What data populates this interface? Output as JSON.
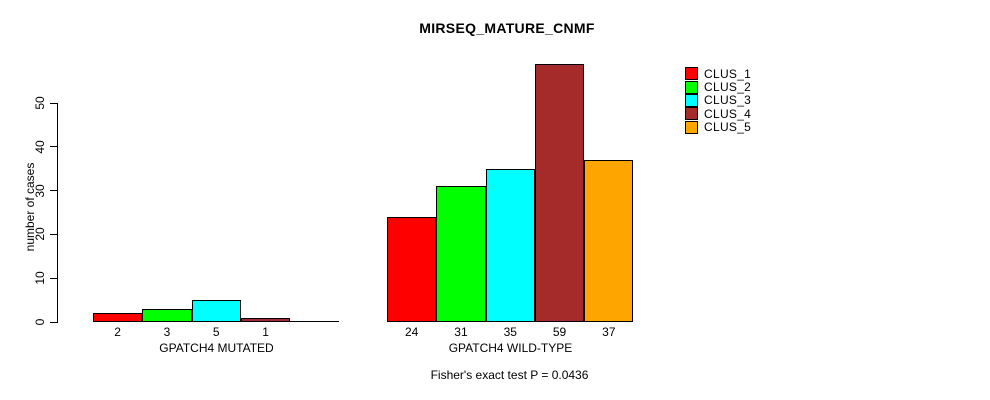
{
  "chart_data": {
    "type": "bar",
    "title": "MIRSEQ_MATURE_CNMF",
    "xlabel": "",
    "ylabel": "number of cases",
    "ylim": [
      0,
      50
    ],
    "yticks": [
      0,
      10,
      20,
      30,
      40,
      50
    ],
    "grid": false,
    "background": "#ffffff",
    "axis_color": "#000000",
    "bar_border_color": "#000000",
    "legend": {
      "position": "right",
      "entries": [
        {
          "label": "CLUS_1",
          "color": "#ff0000"
        },
        {
          "label": "CLUS_2",
          "color": "#00ff00"
        },
        {
          "label": "CLUS_3",
          "color": "#00ffff"
        },
        {
          "label": "CLUS_4",
          "color": "#a52a2a"
        },
        {
          "label": "CLUS_5",
          "color": "#ffa500"
        }
      ]
    },
    "groups": [
      {
        "label": "GPATCH4 MUTATED",
        "bars": [
          {
            "cluster": "CLUS_1",
            "value": 2,
            "label": "2",
            "color": "#ff0000"
          },
          {
            "cluster": "CLUS_2",
            "value": 3,
            "label": "3",
            "color": "#00ff00"
          },
          {
            "cluster": "CLUS_3",
            "value": 5,
            "label": "5",
            "color": "#00ffff"
          },
          {
            "cluster": "CLUS_4",
            "value": 1,
            "label": "1",
            "color": "#a52a2a"
          },
          {
            "cluster": "CLUS_5",
            "value": 0,
            "label": "",
            "color": "#ffa500"
          }
        ]
      },
      {
        "label": "GPATCH4 WILD-TYPE",
        "bars": [
          {
            "cluster": "CLUS_1",
            "value": 24,
            "label": "24",
            "color": "#ff0000"
          },
          {
            "cluster": "CLUS_2",
            "value": 31,
            "label": "31",
            "color": "#00ff00"
          },
          {
            "cluster": "CLUS_3",
            "value": 35,
            "label": "35",
            "color": "#00ffff"
          },
          {
            "cluster": "CLUS_4",
            "value": 59,
            "label": "59",
            "color": "#a52a2a"
          },
          {
            "cluster": "CLUS_5",
            "value": 37,
            "label": "37",
            "color": "#ffa500"
          }
        ]
      }
    ],
    "annotation": "Fisher's exact test P = 0.0436"
  }
}
